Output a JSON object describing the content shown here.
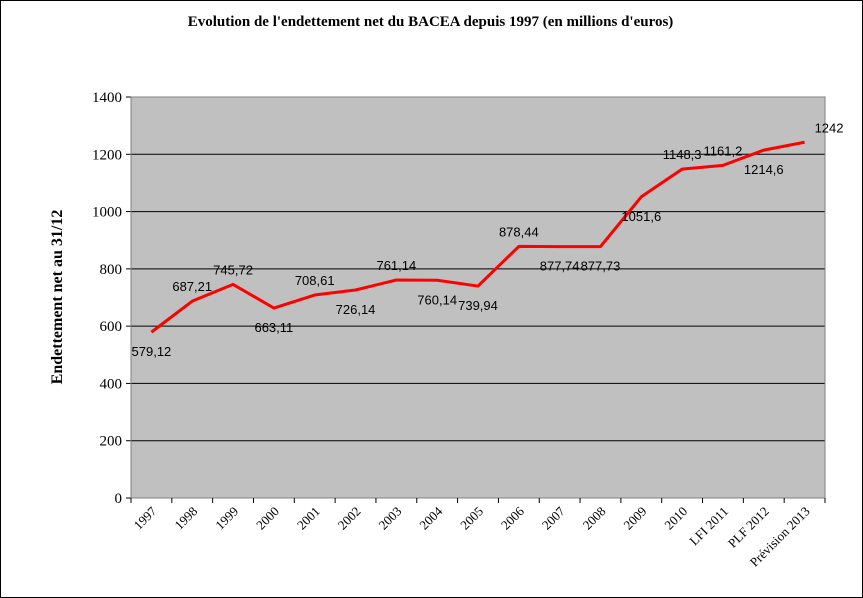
{
  "chart_data": {
    "type": "line",
    "title": "Evolution de l'endettement net du BACEA depuis 1997 (en millions d'euros)",
    "xlabel": "",
    "ylabel": "Endettement net au 31/12",
    "ylim": [
      0,
      1400
    ],
    "yticks": [
      0,
      200,
      400,
      600,
      800,
      1000,
      1200,
      1400
    ],
    "grid": true,
    "legend": "none",
    "categories": [
      "1997",
      "1998",
      "1999",
      "2000",
      "2001",
      "2002",
      "2003",
      "2004",
      "2005",
      "2006",
      "2007",
      "2008",
      "2009",
      "2010",
      "LFI 2011",
      "PLF 2012",
      "Prévision 2013"
    ],
    "series": [
      {
        "values": [
          579.12,
          687.21,
          745.72,
          663.11,
          708.61,
          726.14,
          761.14,
          760.14,
          739.94,
          878.44,
          877.74,
          877.73,
          1051.6,
          1148.3,
          1161.2,
          1214.6,
          1242
        ],
        "labels": [
          "579,12",
          "687,21",
          "745,72",
          "663,11",
          "708,61",
          "726,14",
          "761,14",
          "760,14",
          "739,94",
          "878,44",
          "877,74",
          "877,73",
          "1051,6",
          "1148,3",
          "1161,2",
          "1214,6",
          "1242"
        ],
        "color": "#ff0000"
      }
    ],
    "plot_background": "#c0c0c0"
  }
}
